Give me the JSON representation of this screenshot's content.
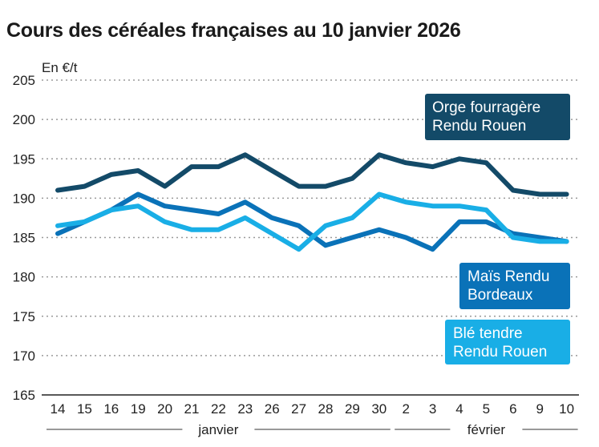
{
  "title": "Cours des céréales françaises au 10 janvier 2026",
  "chart_data": {
    "type": "line",
    "title": "Cours des céréales françaises au 10 janvier 2026",
    "ylabel": "En €/t",
    "ylim": [
      165,
      205
    ],
    "yticks": [
      165,
      170,
      175,
      180,
      185,
      190,
      195,
      200,
      205
    ],
    "grid": true,
    "categories": [
      "14",
      "15",
      "16",
      "19",
      "20",
      "21",
      "22",
      "23",
      "26",
      "27",
      "28",
      "29",
      "30",
      "2",
      "3",
      "4",
      "5",
      "6",
      "9",
      "10"
    ],
    "month_labels": [
      {
        "label": "janvier",
        "from": 0,
        "to": 12
      },
      {
        "label": "février",
        "from": 13,
        "to": 19
      }
    ],
    "series": [
      {
        "name": "Orge fourragère Rendu Rouen",
        "label_lines": [
          "Orge fourragère",
          "Rendu Rouen"
        ],
        "color": "#134a68",
        "values": [
          191,
          191.5,
          193,
          193.5,
          191.5,
          194,
          194,
          195.5,
          193.5,
          191.5,
          191.5,
          192.5,
          195.5,
          194.5,
          194,
          195,
          194.5,
          191,
          190.5,
          190.5
        ]
      },
      {
        "name": "Maïs Rendu Bordeaux",
        "label_lines": [
          "Maïs Rendu",
          "Bordeaux"
        ],
        "color": "#0a72b8",
        "values": [
          185.5,
          187,
          188.5,
          190.5,
          189,
          188.5,
          188,
          189.5,
          187.5,
          186.5,
          184,
          185,
          186,
          185,
          183.5,
          187,
          187,
          185.5,
          185,
          184.5
        ]
      },
      {
        "name": "Blé tendre Rendu Rouen",
        "label_lines": [
          "Blé tendre",
          "Rendu Rouen"
        ],
        "color": "#19aee6",
        "values": [
          186.5,
          187,
          188.5,
          189,
          187,
          186,
          186,
          187.5,
          185.5,
          183.5,
          186.5,
          187.5,
          190.5,
          189.5,
          189,
          189,
          188.5,
          185,
          184.5,
          184.5
        ]
      }
    ]
  }
}
